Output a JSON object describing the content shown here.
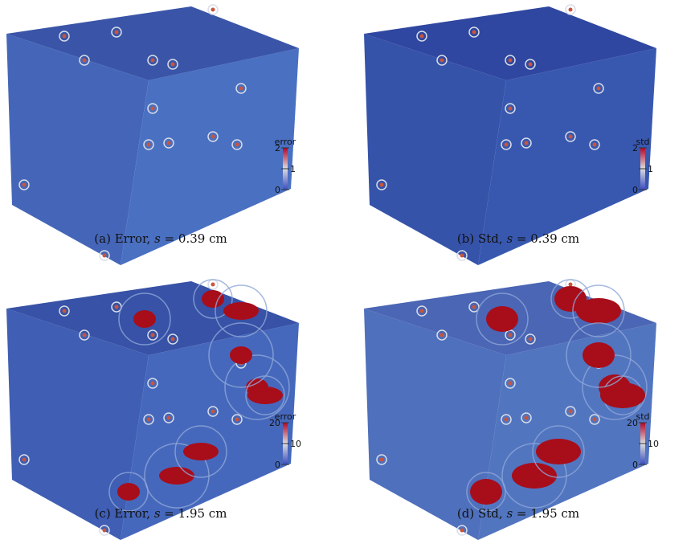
{
  "panels": [
    {
      "caption": {
        "label": "(a) Error, ",
        "var": "s",
        "rest": " = 0.39 cm"
      },
      "colorbar": {
        "title": "error",
        "lim": [
          0,
          2
        ],
        "ticks": [
          2,
          1,
          0
        ]
      }
    },
    {
      "caption": {
        "label": "(b) Std, ",
        "var": "s",
        "rest": " = 0.39 cm"
      },
      "colorbar": {
        "title": "std",
        "lim": [
          0,
          2
        ],
        "ticks": [
          2,
          1,
          0
        ]
      }
    },
    {
      "caption": {
        "label": "(c) Error, ",
        "var": "s",
        "rest": " = 1.95 cm"
      },
      "colorbar": {
        "title": "error",
        "lim": [
          0,
          20
        ],
        "ticks": [
          20,
          10,
          0
        ]
      }
    },
    {
      "caption": {
        "label": "(d) Std, ",
        "var": "s",
        "rest": " = 1.95 cm"
      },
      "colorbar": {
        "title": "std",
        "lim": [
          0,
          20
        ],
        "ticks": [
          20,
          10,
          0
        ]
      }
    }
  ]
}
